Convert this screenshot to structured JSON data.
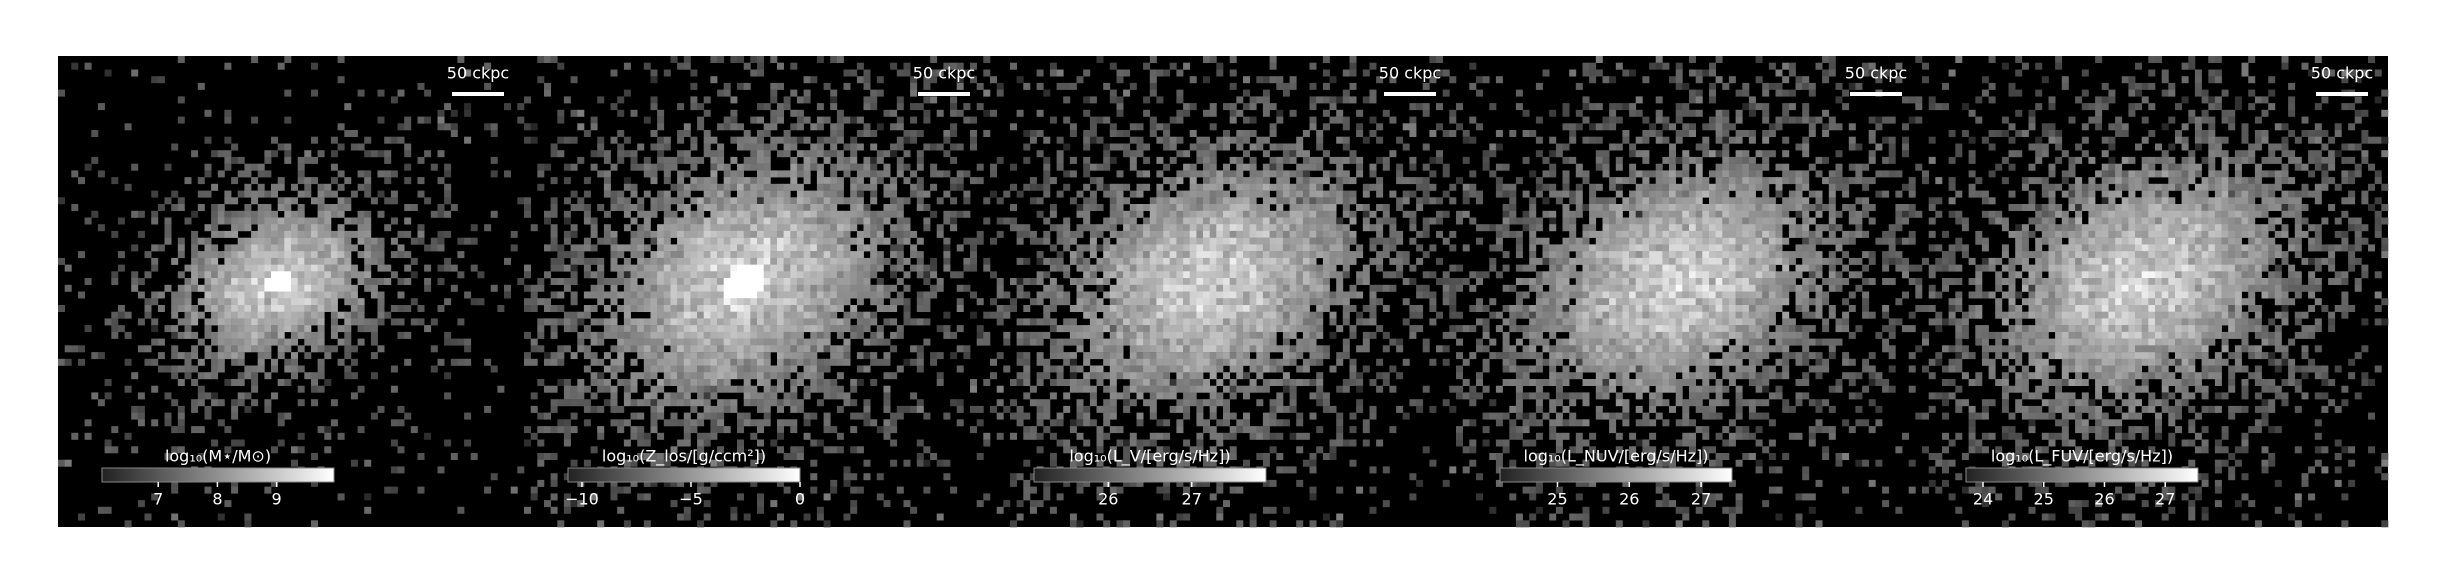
{
  "panels": [
    {
      "scalebar": "50 ckpc",
      "colorbar": {
        "label": "log₁₀(M⋆/M⊙)",
        "lim": [
          6.05,
          9.97
        ],
        "ticks": [
          7,
          8,
          9
        ]
      }
    },
    {
      "scalebar": "50 ckpc",
      "colorbar": {
        "label": "log₁₀(Z_los/[g/ccm²])",
        "lim": [
          -10.64,
          0
        ],
        "ticks": [
          {
            "value": -10,
            "label": "−10"
          },
          {
            "value": -5,
            "label": "−5"
          },
          0
        ]
      }
    },
    {
      "scalebar": "50 ckpc",
      "colorbar": {
        "label": "log₁₀(L_V/[erg/s/Hz])",
        "lim": [
          25.11,
          27.89
        ],
        "ticks": [
          26,
          27
        ]
      }
    },
    {
      "scalebar": "50 ckpc",
      "colorbar": {
        "label": "log₁₀(L_NUV/[erg/s/Hz])",
        "lim": [
          24.2,
          27.43
        ],
        "ticks": [
          25,
          26,
          27
        ]
      }
    },
    {
      "scalebar": "50 ckpc",
      "colorbar": {
        "label": "log₁₀(L_FUV/[erg/s/Hz])",
        "lim": [
          23.72,
          27.54
        ],
        "ticks": [
          24,
          25,
          26,
          27
        ]
      }
    }
  ]
}
